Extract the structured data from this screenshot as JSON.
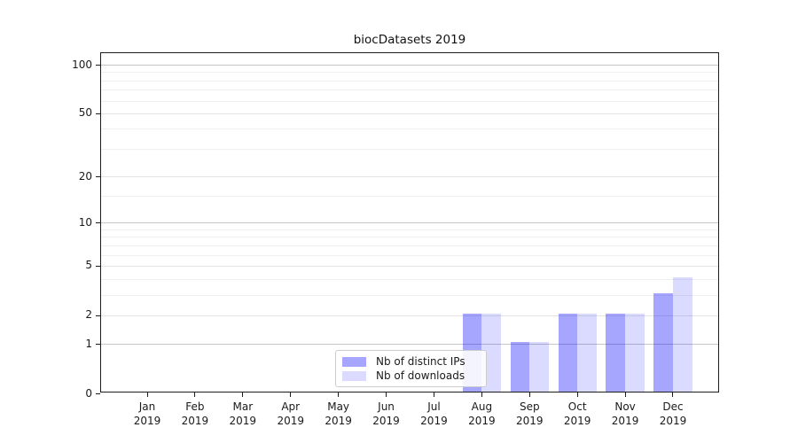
{
  "chart_data": {
    "type": "bar",
    "title": "biocDatasets 2019",
    "categories": [
      "Jan 2019",
      "Feb 2019",
      "Mar 2019",
      "Apr 2019",
      "May 2019",
      "Jun 2019",
      "Jul 2019",
      "Aug 2019",
      "Sep 2019",
      "Oct 2019",
      "Nov 2019",
      "Dec 2019"
    ],
    "series": [
      {
        "name": "Nb of distinct IPs",
        "color": "rgba(0,0,255,0.35)",
        "values": [
          0,
          0,
          0,
          0,
          0,
          0,
          0,
          2,
          1,
          2,
          2,
          3
        ]
      },
      {
        "name": "Nb of downloads",
        "color": "rgba(0,0,255,0.14)",
        "values": [
          0,
          0,
          0,
          0,
          0,
          0,
          0,
          2,
          1,
          2,
          2,
          4
        ]
      }
    ],
    "y_axis": {
      "scale": "log1p",
      "ylim": [
        0,
        100
      ],
      "ticks": [
        0,
        1,
        2,
        5,
        10,
        20,
        50,
        100
      ],
      "minor_gridlines": [
        3,
        4,
        6,
        7,
        8,
        9,
        15,
        30,
        40,
        60,
        70,
        80,
        90
      ]
    },
    "legend": {
      "position": "lower center"
    },
    "grid": true,
    "colors": {
      "axis": "#1c1c1c",
      "grid_power10": "#c6c6c6",
      "grid_labeled": "#e3e3e3",
      "grid_minor": "#efefef",
      "legend_border": "#cccccc"
    }
  }
}
